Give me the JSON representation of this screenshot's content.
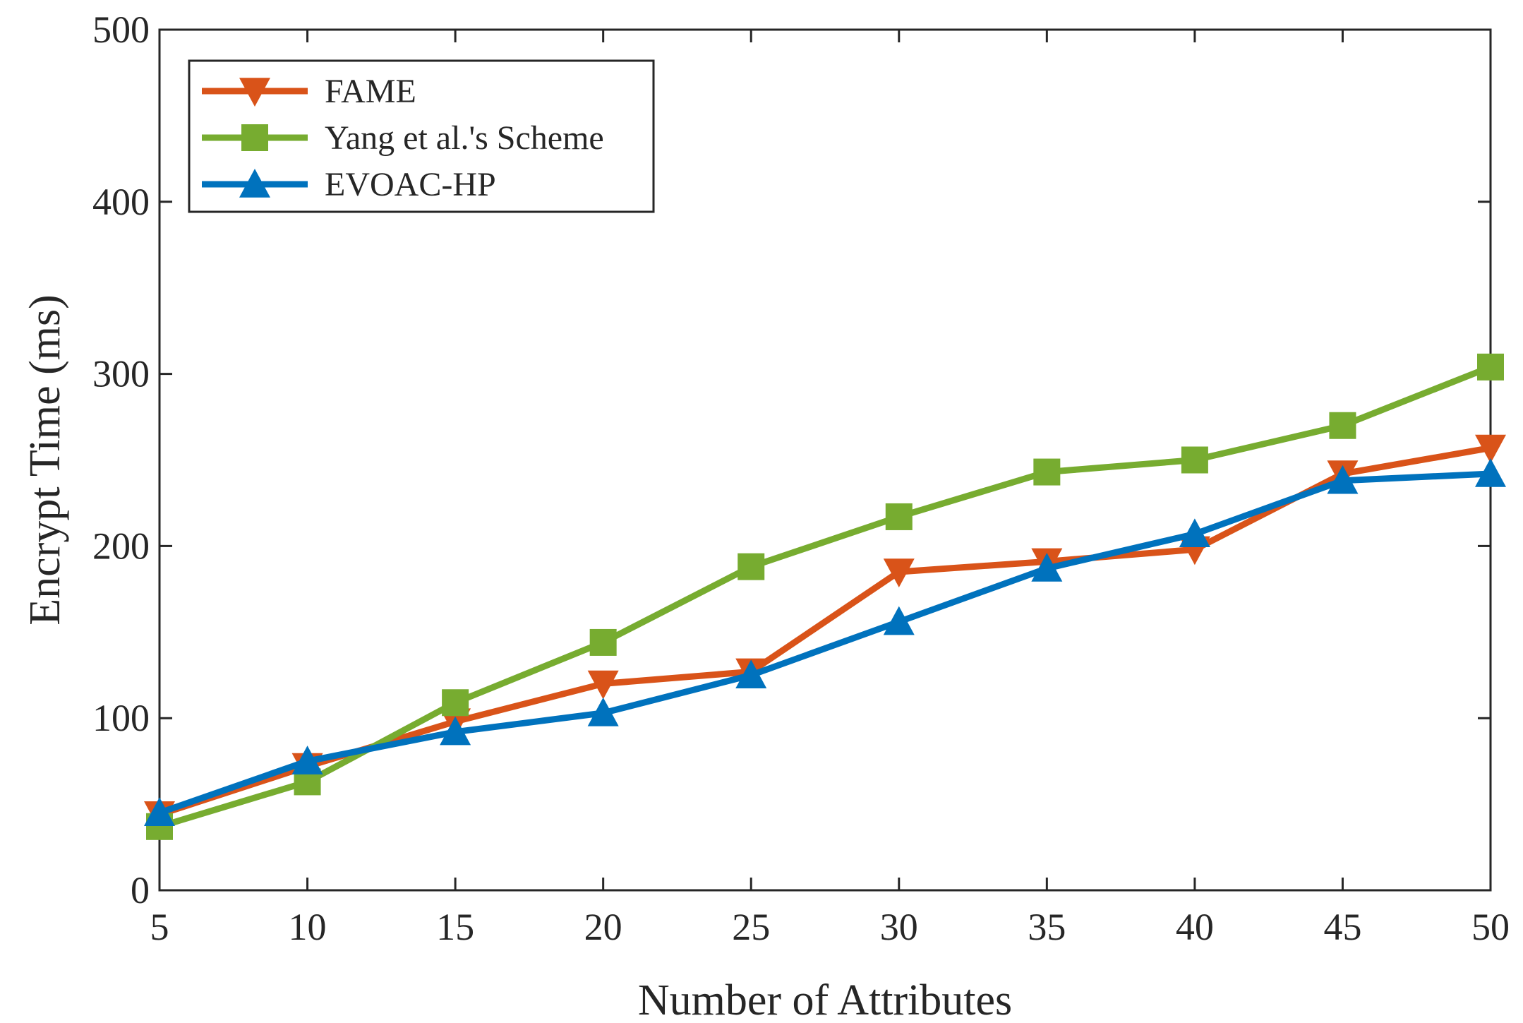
{
  "chart_data": {
    "type": "line",
    "title": "",
    "xlabel": "Number of Attributes",
    "ylabel": "Encrypt Time (ms)",
    "x": [
      5,
      10,
      15,
      20,
      25,
      30,
      35,
      40,
      45,
      50
    ],
    "xlim": [
      5,
      50
    ],
    "ylim": [
      0,
      500
    ],
    "xticks": [
      5,
      10,
      15,
      20,
      25,
      30,
      35,
      40,
      45,
      50
    ],
    "yticks": [
      0,
      100,
      200,
      300,
      400,
      500
    ],
    "grid": false,
    "legend_position": "top-left",
    "series": [
      {
        "name": "FAME",
        "marker": "triangle-down",
        "color": "#D95319",
        "values": [
          44,
          72,
          98,
          120,
          127,
          185,
          191,
          198,
          242,
          257
        ]
      },
      {
        "name": "Yang et al.'s Scheme",
        "marker": "square",
        "color": "#77AC30",
        "values": [
          37,
          63,
          109,
          144,
          188,
          217,
          243,
          250,
          270,
          304
        ]
      },
      {
        "name": "EVOAC-HP",
        "marker": "triangle-up",
        "color": "#0072BD",
        "values": [
          45,
          75,
          92,
          103,
          125,
          156,
          187,
          207,
          238,
          242
        ]
      }
    ]
  }
}
